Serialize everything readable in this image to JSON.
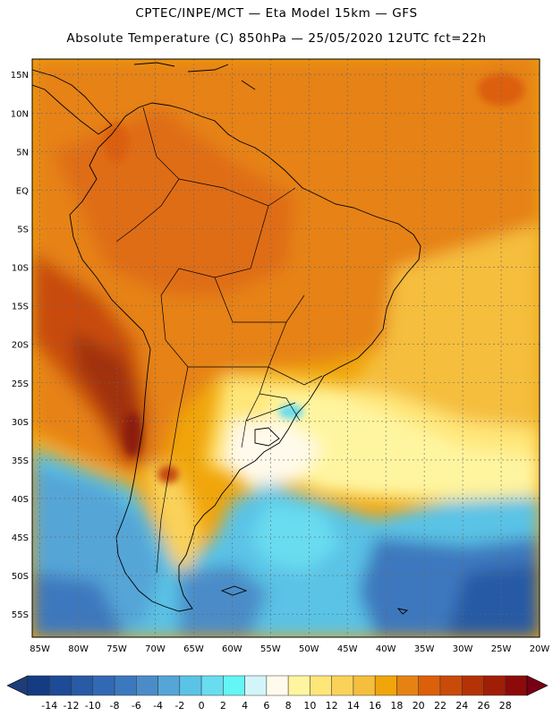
{
  "header": {
    "line1": "CPTEC/INPE/MCT —  Eta Model 15km — GFS",
    "line2": "Absolute Temperature (C) 850hPa — 25/05/2020 12UTC fct=22h"
  },
  "map": {
    "lat_labels": [
      "15N",
      "10N",
      "5N",
      "EQ",
      "5S",
      "10S",
      "15S",
      "20S",
      "25S",
      "30S",
      "35S",
      "40S",
      "45S",
      "50S",
      "55S"
    ],
    "lon_labels": [
      "85W",
      "80W",
      "75W",
      "70W",
      "65W",
      "60W",
      "55W",
      "50W",
      "45W",
      "40W",
      "35W",
      "30W",
      "25W",
      "20W"
    ],
    "lat_values": [
      15,
      10,
      5,
      0,
      -5,
      -10,
      -15,
      -20,
      -25,
      -30,
      -35,
      -40,
      -45,
      -50,
      -55
    ],
    "lon_values": [
      -85,
      -80,
      -75,
      -70,
      -65,
      -60,
      -55,
      -50,
      -45,
      -40,
      -35,
      -30,
      -25,
      -20
    ],
    "lon_range": [
      -86,
      -20
    ],
    "lat_range": [
      -58,
      17
    ]
  },
  "colorbar": {
    "labels": [
      "-14",
      "-12",
      "-10",
      "-8",
      "-6",
      "-4",
      "-2",
      "0",
      "2",
      "4",
      "6",
      "8",
      "10",
      "12",
      "14",
      "16",
      "18",
      "20",
      "22",
      "24",
      "26",
      "28"
    ],
    "colors": [
      "#143c82",
      "#1e4b96",
      "#285aa5",
      "#3269b4",
      "#3c78be",
      "#4b8cc8",
      "#55a5d7",
      "#5ac3e6",
      "#69dcf0",
      "#64f5f5",
      "#d2f5fa",
      "#fffaeb",
      "#fff5a0",
      "#ffe678",
      "#fad25a",
      "#f5be3c",
      "#f0a50a",
      "#e68214",
      "#dc5f0a",
      "#c84b0a",
      "#b43205",
      "#a01e05",
      "#8c0a0a"
    ],
    "under_color": "#1e3c78",
    "over_color": "#780014"
  }
}
